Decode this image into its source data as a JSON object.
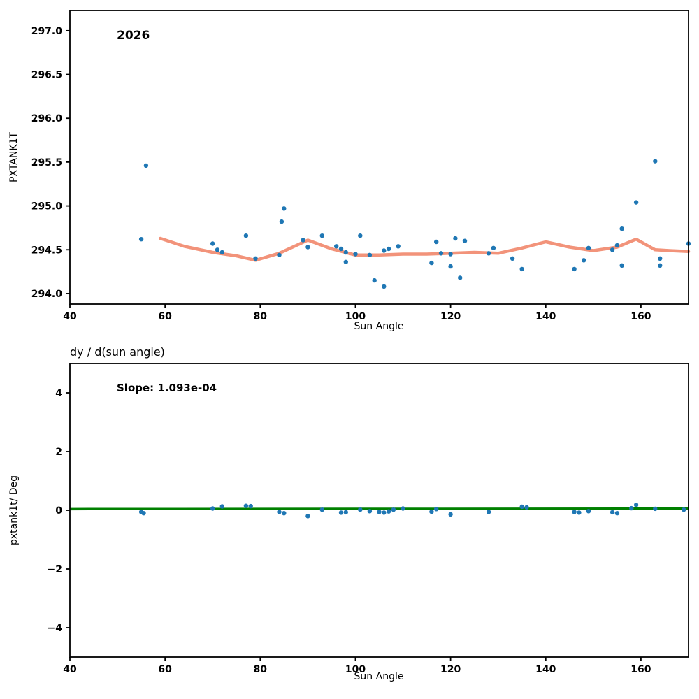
{
  "chart_data": [
    {
      "type": "scatter",
      "annotation": "2026",
      "xlabel": "Sun Angle",
      "ylabel": "PXTANK1T",
      "xlim": [
        40,
        170
      ],
      "ylim": [
        293.88,
        297.23
      ],
      "xtick_values": [
        40,
        60,
        80,
        100,
        120,
        140,
        160
      ],
      "xtick_labels": [
        "40",
        "60",
        "80",
        "100",
        "120",
        "140",
        "160"
      ],
      "ytick_values": [
        294.0,
        294.5,
        295.0,
        295.5,
        296.0,
        296.5,
        297.0
      ],
      "ytick_labels": [
        "294.0",
        "294.5",
        "295.0",
        "295.5",
        "296.0",
        "296.5",
        "297.0"
      ],
      "grid": false,
      "point_color": "#1f77b4",
      "trend_color": "#f2937a",
      "points": [
        [
          55,
          294.62
        ],
        [
          56,
          295.46
        ],
        [
          70,
          294.57
        ],
        [
          71,
          294.5
        ],
        [
          72,
          294.47
        ],
        [
          77,
          294.66
        ],
        [
          79,
          294.4
        ],
        [
          84,
          294.44
        ],
        [
          84.5,
          294.82
        ],
        [
          85,
          294.97
        ],
        [
          89,
          294.61
        ],
        [
          90,
          294.53
        ],
        [
          93,
          294.66
        ],
        [
          96,
          294.54
        ],
        [
          97,
          294.51
        ],
        [
          98,
          294.47
        ],
        [
          98,
          294.36
        ],
        [
          100,
          294.45
        ],
        [
          101,
          294.66
        ],
        [
          103,
          294.44
        ],
        [
          104,
          294.15
        ],
        [
          106,
          294.08
        ],
        [
          106,
          294.49
        ],
        [
          107,
          294.51
        ],
        [
          109,
          294.54
        ],
        [
          116,
          294.35
        ],
        [
          117,
          294.59
        ],
        [
          118,
          294.46
        ],
        [
          120,
          294.31
        ],
        [
          120,
          294.45
        ],
        [
          121,
          294.63
        ],
        [
          122,
          294.18
        ],
        [
          123,
          294.6
        ],
        [
          128,
          294.46
        ],
        [
          129,
          294.52
        ],
        [
          133,
          294.4
        ],
        [
          135,
          294.28
        ],
        [
          146,
          294.28
        ],
        [
          148,
          294.38
        ],
        [
          149,
          294.52
        ],
        [
          154,
          294.5
        ],
        [
          155,
          294.55
        ],
        [
          156,
          294.32
        ],
        [
          156,
          294.74
        ],
        [
          159,
          295.04
        ],
        [
          163,
          295.51
        ],
        [
          164,
          294.32
        ],
        [
          164,
          294.4
        ],
        [
          170,
          294.57
        ]
      ],
      "trend_line": [
        [
          59,
          294.63
        ],
        [
          64,
          294.54
        ],
        [
          70,
          294.47
        ],
        [
          75,
          294.43
        ],
        [
          79,
          294.38
        ],
        [
          84,
          294.46
        ],
        [
          90,
          294.61
        ],
        [
          95,
          294.51
        ],
        [
          100,
          294.44
        ],
        [
          105,
          294.44
        ],
        [
          110,
          294.45
        ],
        [
          115,
          294.45
        ],
        [
          120,
          294.46
        ],
        [
          125,
          294.47
        ],
        [
          130,
          294.46
        ],
        [
          135,
          294.52
        ],
        [
          140,
          294.59
        ],
        [
          145,
          294.53
        ],
        [
          150,
          294.49
        ],
        [
          155,
          294.53
        ],
        [
          159,
          294.62
        ],
        [
          163,
          294.5
        ],
        [
          166,
          294.49
        ],
        [
          170,
          294.48
        ]
      ]
    },
    {
      "type": "scatter",
      "title": "dy / d(sun angle)",
      "annotation": "Slope: 1.093e-04",
      "slope": 0.0001093,
      "xlabel": "Sun Angle",
      "ylabel": "pxtank1t/ Deg",
      "xlim": [
        40,
        170
      ],
      "ylim": [
        -5,
        5
      ],
      "xtick_values": [
        40,
        60,
        80,
        100,
        120,
        140,
        160
      ],
      "xtick_labels": [
        "40",
        "60",
        "80",
        "100",
        "120",
        "140",
        "160"
      ],
      "ytick_values": [
        -4,
        -2,
        0,
        2,
        4
      ],
      "ytick_labels": [
        "−4",
        "−2",
        "0",
        "2",
        "4"
      ],
      "grid": false,
      "point_color": "#1f77b4",
      "fit_line_color": "#008000",
      "fit_line": [
        [
          40,
          0.04
        ],
        [
          170,
          0.055
        ]
      ],
      "points": [
        [
          55,
          -0.06
        ],
        [
          55.5,
          -0.1
        ],
        [
          70,
          0.06
        ],
        [
          72,
          0.13
        ],
        [
          77,
          0.15
        ],
        [
          78,
          0.14
        ],
        [
          84,
          -0.06
        ],
        [
          85,
          -0.1
        ],
        [
          90,
          -0.2
        ],
        [
          93,
          0.02
        ],
        [
          97,
          -0.08
        ],
        [
          98,
          -0.07
        ],
        [
          101,
          0.02
        ],
        [
          103,
          -0.03
        ],
        [
          105,
          -0.06
        ],
        [
          106,
          -0.08
        ],
        [
          107,
          -0.04
        ],
        [
          108,
          0.02
        ],
        [
          110,
          0.06
        ],
        [
          116,
          -0.05
        ],
        [
          117,
          0.04
        ],
        [
          120,
          -0.14
        ],
        [
          128,
          -0.06
        ],
        [
          135,
          0.12
        ],
        [
          136,
          0.1
        ],
        [
          146,
          -0.06
        ],
        [
          147,
          -0.08
        ],
        [
          149,
          -0.03
        ],
        [
          154,
          -0.07
        ],
        [
          155,
          -0.1
        ],
        [
          158,
          0.07
        ],
        [
          159,
          0.18
        ],
        [
          163,
          0.05
        ],
        [
          169,
          0.02
        ]
      ]
    }
  ]
}
